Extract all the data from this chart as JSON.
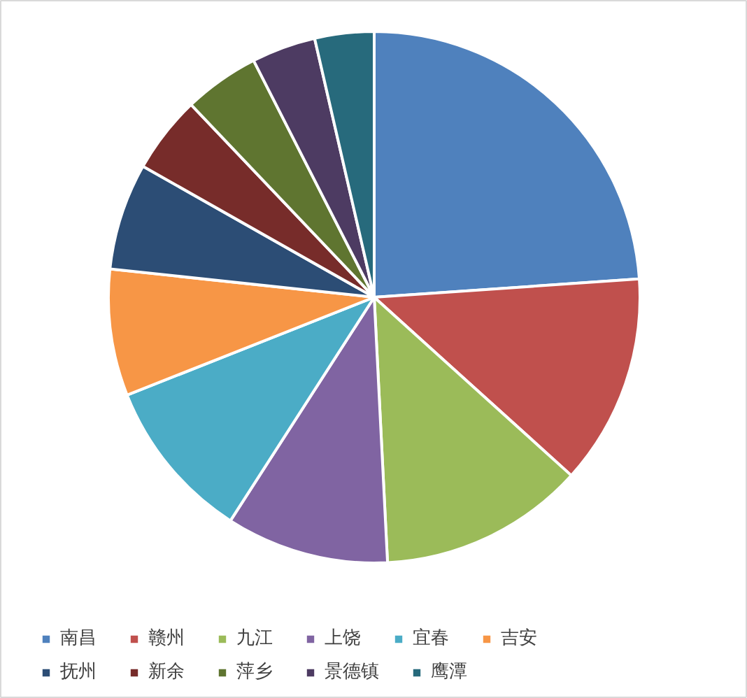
{
  "chart_data": {
    "type": "pie",
    "categories": [
      "南昌",
      "赣州",
      "九江",
      "上饶",
      "宜春",
      "吉安",
      "抚州",
      "新余",
      "萍乡",
      "景德镇",
      "鹰潭"
    ],
    "values": [
      23.9,
      12.8,
      12.5,
      9.9,
      9.9,
      7.7,
      6.5,
      4.7,
      4.6,
      3.9,
      3.6
    ],
    "colors": [
      "#4f81bd",
      "#c0504d",
      "#9bbb59",
      "#8064a2",
      "#4bacc6",
      "#f79646",
      "#2c4d75",
      "#772c2a",
      "#5f7530",
      "#4d3b62",
      "#276a7c"
    ],
    "legend": "bottom"
  }
}
